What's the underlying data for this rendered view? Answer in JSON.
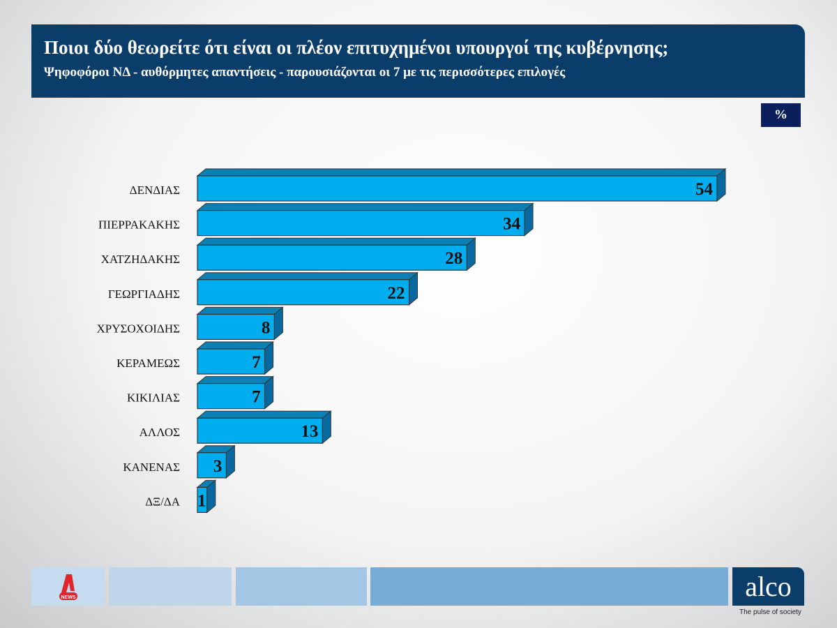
{
  "header": {
    "title": "Ποιοι δύο θεωρείτε ότι είναι οι πλέον επιτυχημένοι υπουργοί της κυβέρνησης;",
    "subtitle": "Ψηφοφόροι ΝΔ - αυθόρμητες απαντήσεις - παρουσιάζονται οι 7 με τις περισσότερες επιλογές"
  },
  "unit_badge": "%",
  "chart_data": {
    "type": "bar",
    "orientation": "horizontal",
    "title": "Ποιοι δύο θεωρείτε ότι είναι οι πλέον επιτυχημένοι υπουργοί της κυβέρνησης;",
    "categories": [
      "ΔΕΝΔΙΑΣ",
      "ΠΙΕΡΡΑΚΑΚΗΣ",
      "ΧΑΤΖΗΔΑΚΗΣ",
      "ΓΕΩΡΓΙΑΔΗΣ",
      "ΧΡΥΣΟΧΟΙΔΗΣ",
      "ΚΕΡΑΜΕΩΣ",
      "ΚΙΚΙΛΙΑΣ",
      "ΑΛΛΟΣ",
      "ΚΑΝΕΝΑΣ",
      "ΔΞ/ΔΑ"
    ],
    "values": [
      54,
      34,
      28,
      22,
      8,
      7,
      7,
      13,
      3,
      1
    ],
    "xlabel": "",
    "ylabel": "",
    "xlim": [
      0,
      54
    ],
    "grid": false,
    "colors": {
      "front": "#00aeef",
      "top": "#0a80b4",
      "side": "#0769a0"
    }
  },
  "footer": {
    "logo_left": "Alpha News",
    "logo_right": "alco",
    "tagline": "The pulse of society"
  }
}
